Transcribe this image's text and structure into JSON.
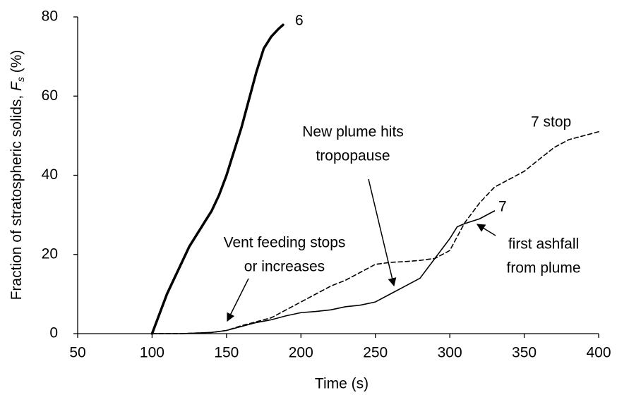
{
  "chart_data": {
    "type": "line",
    "xlabel": "Time (s)",
    "ylabel": {
      "text": "Fraction of stratospheric solids, ",
      "symbol": "F",
      "subscript": "s",
      "unit": " (%)"
    },
    "xlim": [
      50,
      400
    ],
    "xticks": [
      50,
      100,
      150,
      200,
      250,
      300,
      350,
      400
    ],
    "ylim": [
      0,
      80
    ],
    "yticks": [
      0,
      20,
      40,
      60,
      80
    ],
    "grid": false,
    "series": [
      {
        "name": "6",
        "color": "#000000",
        "style": "solid",
        "width": 3.5,
        "x": [
          100,
          105,
          110,
          115,
          120,
          125,
          130,
          135,
          140,
          145,
          150,
          155,
          160,
          165,
          170,
          175,
          180,
          185,
          188
        ],
        "values": [
          0,
          5,
          10,
          14,
          18,
          22,
          25,
          28,
          31,
          35,
          40,
          46,
          52,
          59,
          66,
          72,
          75,
          77,
          78
        ]
      },
      {
        "name": "7",
        "color": "#000000",
        "style": "solid",
        "width": 1.6,
        "x": [
          100,
          120,
          140,
          150,
          160,
          170,
          180,
          190,
          200,
          210,
          220,
          230,
          240,
          250,
          260,
          270,
          280,
          290,
          300,
          305,
          310,
          320,
          330
        ],
        "values": [
          0,
          0,
          0.3,
          0.8,
          1.8,
          2.8,
          3.5,
          4.5,
          5.3,
          5.6,
          6,
          6.8,
          7.2,
          8,
          10,
          12,
          14,
          19,
          24,
          27,
          27.8,
          29,
          31
        ]
      },
      {
        "name": "7 stop",
        "color": "#000000",
        "style": "dashed",
        "width": 1.6,
        "x": [
          100,
          120,
          140,
          150,
          160,
          170,
          180,
          190,
          200,
          210,
          220,
          230,
          240,
          250,
          260,
          270,
          280,
          290,
          300,
          310,
          320,
          330,
          340,
          350,
          360,
          370,
          380,
          390,
          400
        ],
        "values": [
          0,
          0,
          0.3,
          0.8,
          2,
          3,
          4,
          6,
          8,
          10,
          12,
          13.5,
          15.5,
          17.5,
          18,
          18.2,
          18.5,
          19,
          21,
          28,
          33,
          37,
          39,
          41,
          44,
          47,
          49,
          50,
          51
        ]
      }
    ],
    "annotations": [
      {
        "lines": [
          "Vent feeding stops",
          "or increases"
        ]
      },
      {
        "lines": [
          "New plume hits",
          "tropopause"
        ]
      },
      {
        "lines": [
          "first ashfall",
          "from plume"
        ]
      }
    ]
  }
}
